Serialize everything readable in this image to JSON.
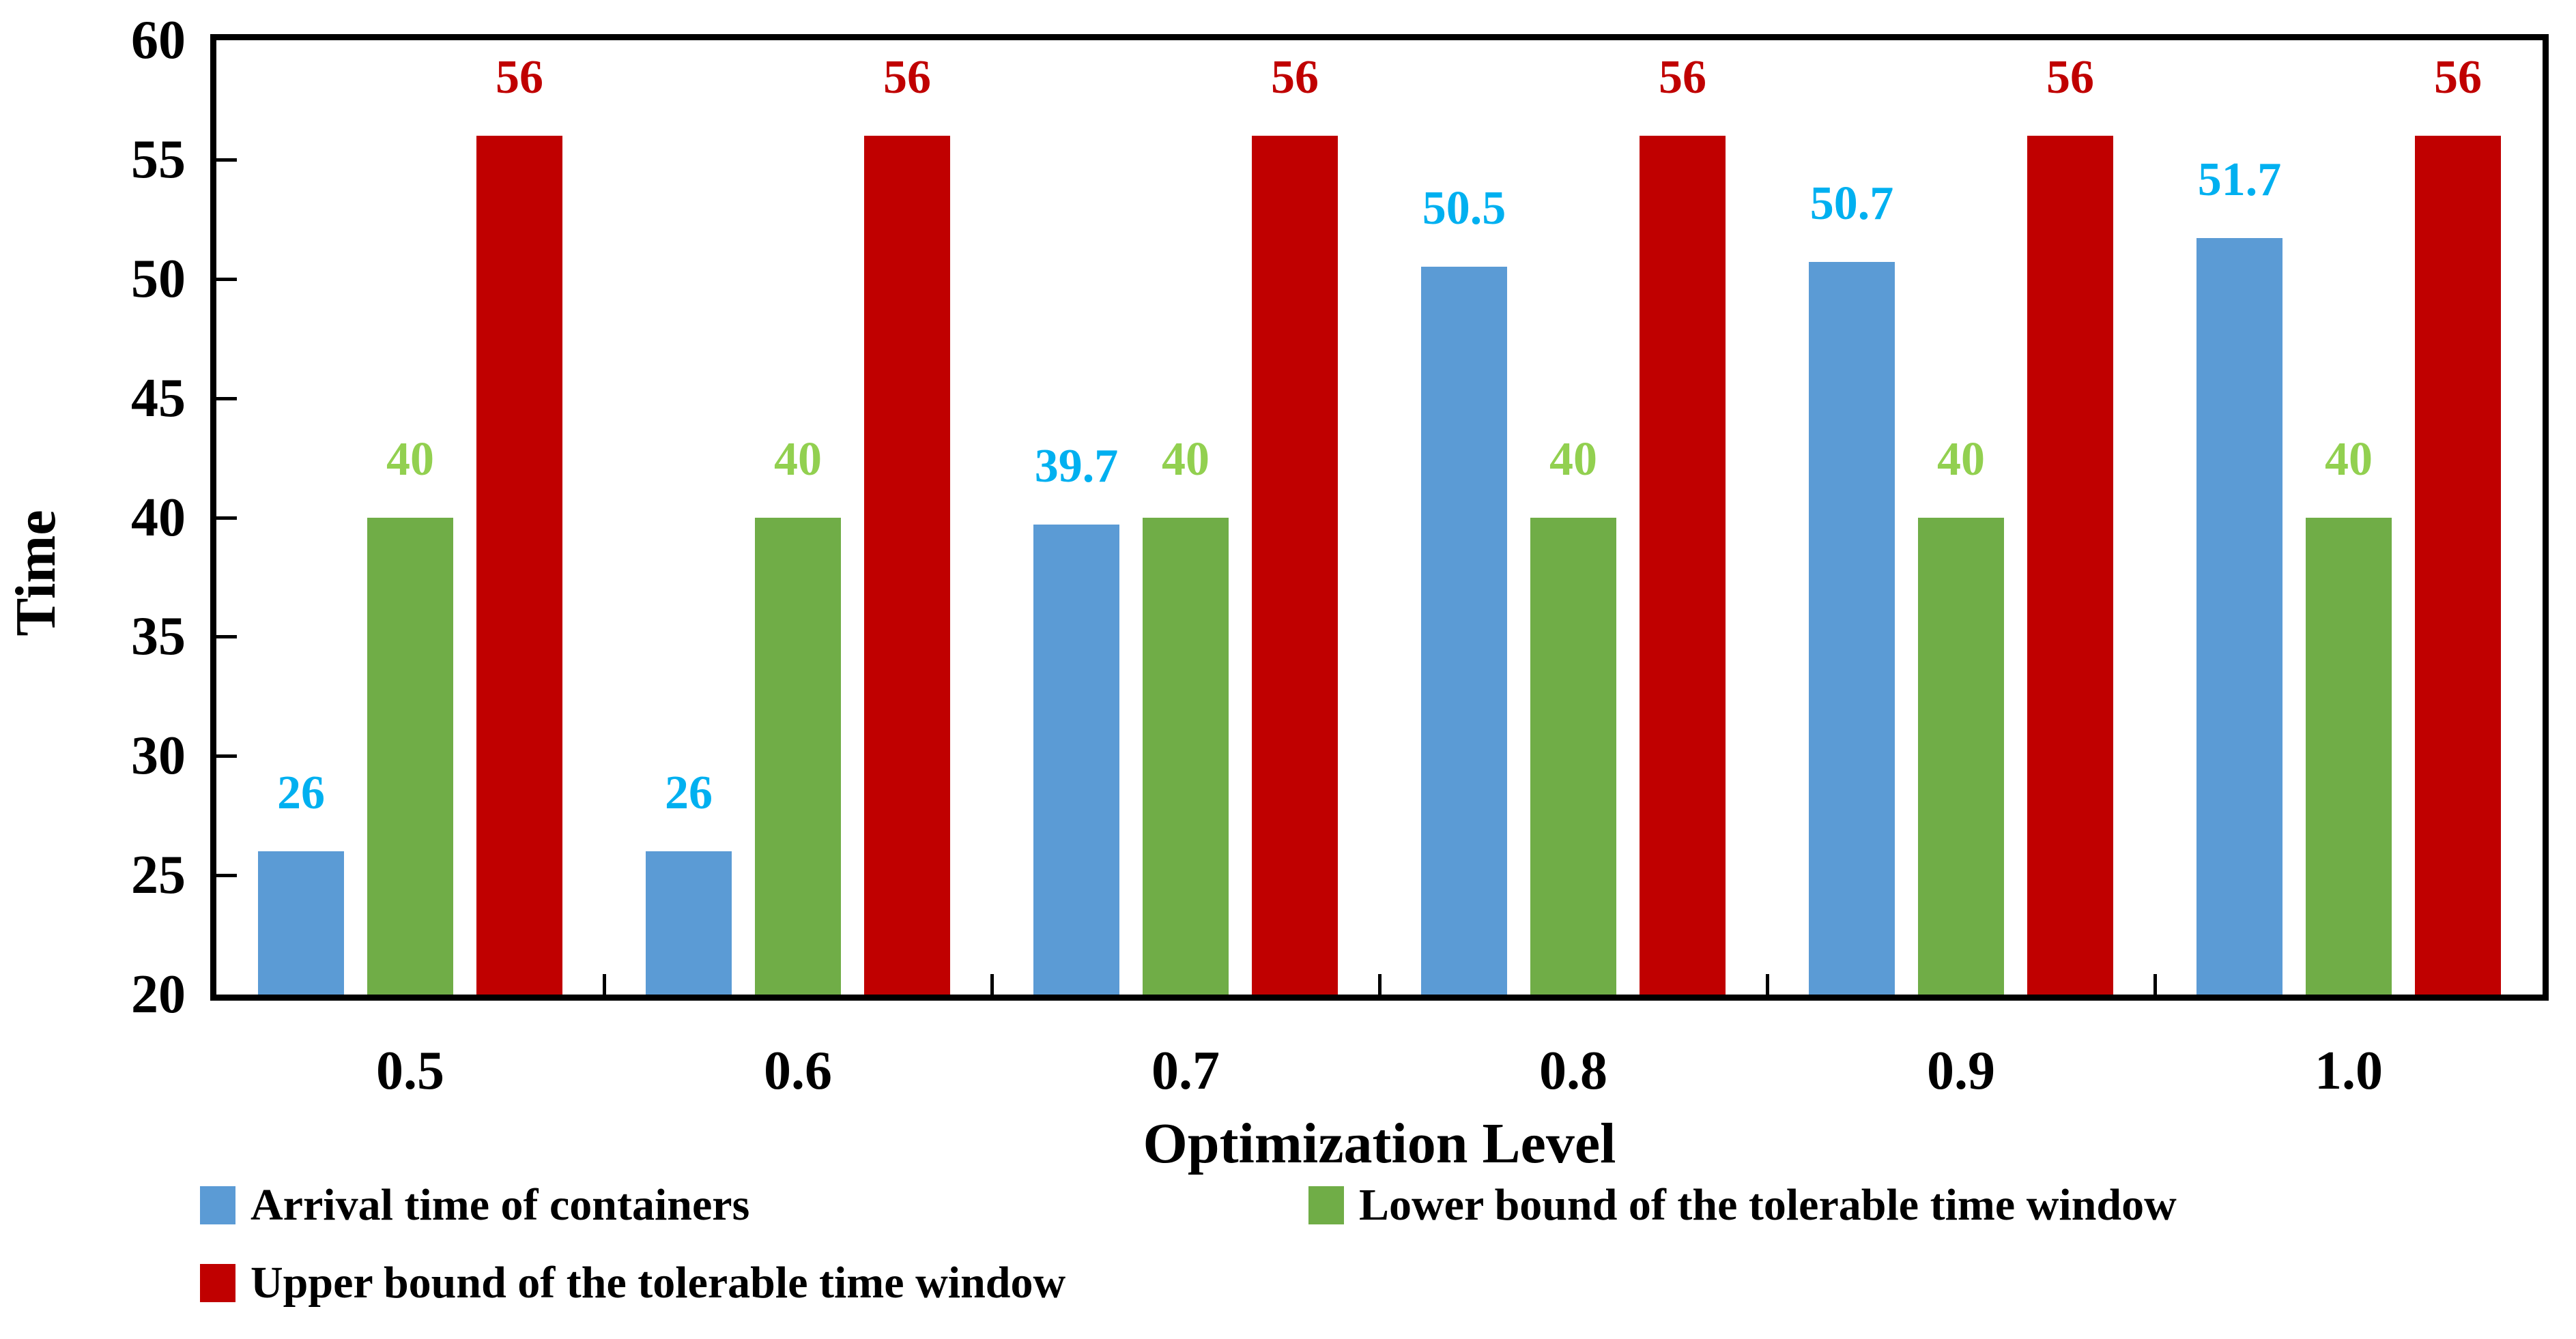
{
  "chart_data": {
    "type": "bar",
    "title": "",
    "xlabel": "Optimization Level",
    "ylabel": "Time",
    "categories": [
      "0.5",
      "0.6",
      "0.7",
      "0.8",
      "0.9",
      "1.0"
    ],
    "series": [
      {
        "name": "Arrival time of containers",
        "color": "#5B9BD5",
        "label_color": "#00B0F0",
        "values": [
          26,
          26,
          39.7,
          50.5,
          50.7,
          51.7
        ],
        "labels": [
          "26",
          "26",
          "39.7",
          "50.5",
          "50.7",
          "51.7"
        ]
      },
      {
        "name": "Lower bound of the tolerable time window",
        "color": "#70AD47",
        "label_color": "#92D050",
        "values": [
          40,
          40,
          40,
          40,
          40,
          40
        ],
        "labels": [
          "40",
          "40",
          "40",
          "40",
          "40",
          "40"
        ]
      },
      {
        "name": "Upper bound of the tolerable time window",
        "color": "#C00000",
        "label_color": "#C00000",
        "values": [
          56,
          56,
          56,
          56,
          56,
          56
        ],
        "labels": [
          "56",
          "56",
          "56",
          "56",
          "56",
          "56"
        ]
      }
    ],
    "ylim": [
      20,
      60
    ],
    "ytick_values": [
      20,
      25,
      30,
      35,
      40,
      45,
      50,
      55,
      60
    ],
    "grid": false,
    "legend_position": "bottom"
  },
  "colors": {
    "axis": "#000000",
    "background": "#FFFFFF"
  }
}
